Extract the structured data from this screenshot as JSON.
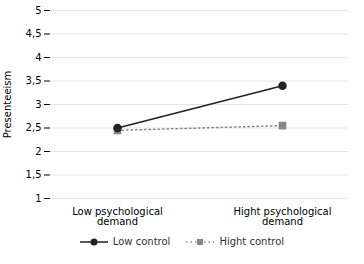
{
  "chart_data": {
    "type": "line",
    "categories": [
      "Low psychological\ndemand",
      "Hight psychological\ndemand"
    ],
    "series": [
      {
        "name": "Low control",
        "color": "#222222",
        "values": [
          2.5,
          3.4
        ],
        "marker": "circle",
        "line_style": "solid"
      },
      {
        "name": "Hight control",
        "color": "#888888",
        "values": [
          2.45,
          2.55
        ],
        "marker": "square",
        "line_style": "dotted"
      }
    ],
    "ylabel": "Presenteeism",
    "ylim": [
      1,
      5
    ],
    "yticks": [
      1,
      {
        "value": 1.5,
        "label": "1,5"
      },
      2,
      {
        "value": 2.5,
        "label": "2,5"
      },
      3,
      {
        "value": 3.5,
        "label": "3,5"
      },
      4,
      {
        "value": 4.5,
        "label": "4,5"
      },
      5
    ],
    "grid": true,
    "legend": "bottom"
  }
}
